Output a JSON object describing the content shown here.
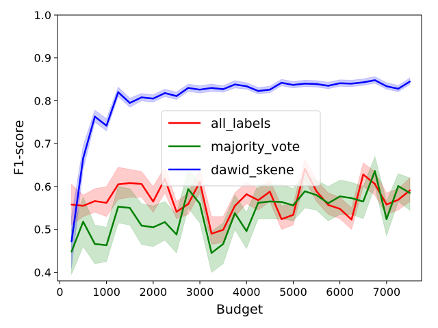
{
  "chart_data": {
    "type": "line",
    "xlabel": "Budget",
    "ylabel": "F1-score",
    "xlim": [
      -50,
      7750
    ],
    "ylim": [
      0.38,
      1.0
    ],
    "x_ticks": [
      0,
      1000,
      2000,
      3000,
      4000,
      5000,
      6000,
      7000
    ],
    "x_tick_labels": [
      "0",
      "1000",
      "2000",
      "3000",
      "4000",
      "5000",
      "6000",
      "7000"
    ],
    "y_ticks": [
      0.4,
      0.5,
      0.6,
      0.7,
      0.8,
      0.9,
      1.0
    ],
    "y_tick_labels": [
      "0.4",
      "0.5",
      "0.6",
      "0.7",
      "0.8",
      "0.9",
      "1.0"
    ],
    "grid": false,
    "legend_position": "center",
    "x": [
      250,
      500,
      750,
      1000,
      1250,
      1500,
      1750,
      2000,
      2250,
      2500,
      2750,
      3000,
      3250,
      3500,
      3750,
      4000,
      4250,
      4500,
      4750,
      5000,
      5250,
      5500,
      5750,
      6000,
      6250,
      6500,
      6750,
      7000,
      7250,
      7500
    ],
    "series": [
      {
        "name": "all_labels",
        "color": "#ff0000",
        "values": [
          0.558,
          0.555,
          0.566,
          0.562,
          0.605,
          0.608,
          0.606,
          0.565,
          0.618,
          0.541,
          0.559,
          0.611,
          0.49,
          0.499,
          0.555,
          0.582,
          0.568,
          0.588,
          0.524,
          0.534,
          0.641,
          0.589,
          0.557,
          0.548,
          0.523,
          0.628,
          0.606,
          0.558,
          0.569,
          0.591
        ],
        "lower": [
          0.51,
          0.53,
          0.54,
          0.53,
          0.57,
          0.575,
          0.575,
          0.54,
          0.585,
          0.525,
          0.535,
          0.585,
          0.465,
          0.47,
          0.53,
          0.56,
          0.545,
          0.565,
          0.5,
          0.51,
          0.615,
          0.565,
          0.535,
          0.525,
          0.5,
          0.6,
          0.58,
          0.535,
          0.545,
          0.565
        ],
        "upper": [
          0.605,
          0.58,
          0.595,
          0.6,
          0.645,
          0.64,
          0.635,
          0.6,
          0.645,
          0.565,
          0.585,
          0.64,
          0.53,
          0.53,
          0.585,
          0.61,
          0.595,
          0.615,
          0.555,
          0.56,
          0.665,
          0.615,
          0.585,
          0.575,
          0.55,
          0.655,
          0.635,
          0.585,
          0.595,
          0.62
        ]
      },
      {
        "name": "majority_vote",
        "color": "#008000",
        "values": [
          0.448,
          0.518,
          0.466,
          0.463,
          0.553,
          0.55,
          0.509,
          0.505,
          0.517,
          0.488,
          0.594,
          0.56,
          0.445,
          0.466,
          0.538,
          0.496,
          0.562,
          0.565,
          0.564,
          0.556,
          0.589,
          0.58,
          0.561,
          0.577,
          0.573,
          0.565,
          0.636,
          0.524,
          0.601,
          0.585
        ],
        "lower": [
          0.395,
          0.46,
          0.42,
          0.425,
          0.515,
          0.51,
          0.465,
          0.46,
          0.475,
          0.445,
          0.55,
          0.515,
          0.4,
          0.42,
          0.5,
          0.455,
          0.525,
          0.525,
          0.525,
          0.52,
          0.55,
          0.545,
          0.52,
          0.535,
          0.535,
          0.525,
          0.6,
          0.485,
          0.565,
          0.545
        ],
        "upper": [
          0.5,
          0.575,
          0.51,
          0.505,
          0.6,
          0.595,
          0.56,
          0.555,
          0.565,
          0.535,
          0.64,
          0.61,
          0.495,
          0.515,
          0.58,
          0.54,
          0.605,
          0.605,
          0.605,
          0.595,
          0.63,
          0.615,
          0.6,
          0.615,
          0.61,
          0.6,
          0.67,
          0.565,
          0.63,
          0.62
        ]
      },
      {
        "name": "dawid_skene",
        "color": "#0000ff",
        "values": [
          0.472,
          0.666,
          0.763,
          0.742,
          0.82,
          0.795,
          0.808,
          0.805,
          0.818,
          0.811,
          0.83,
          0.826,
          0.83,
          0.827,
          0.838,
          0.834,
          0.823,
          0.826,
          0.842,
          0.837,
          0.84,
          0.839,
          0.835,
          0.841,
          0.84,
          0.843,
          0.848,
          0.834,
          0.828,
          0.845
        ],
        "lower": [
          0.41,
          0.64,
          0.75,
          0.73,
          0.81,
          0.785,
          0.8,
          0.797,
          0.81,
          0.803,
          0.822,
          0.818,
          0.822,
          0.82,
          0.83,
          0.827,
          0.816,
          0.819,
          0.835,
          0.83,
          0.833,
          0.832,
          0.828,
          0.834,
          0.833,
          0.836,
          0.841,
          0.827,
          0.821,
          0.838
        ],
        "upper": [
          0.53,
          0.695,
          0.778,
          0.758,
          0.832,
          0.806,
          0.817,
          0.814,
          0.827,
          0.82,
          0.839,
          0.835,
          0.839,
          0.835,
          0.847,
          0.842,
          0.831,
          0.834,
          0.85,
          0.845,
          0.848,
          0.847,
          0.843,
          0.849,
          0.848,
          0.851,
          0.856,
          0.842,
          0.836,
          0.853
        ]
      }
    ]
  }
}
